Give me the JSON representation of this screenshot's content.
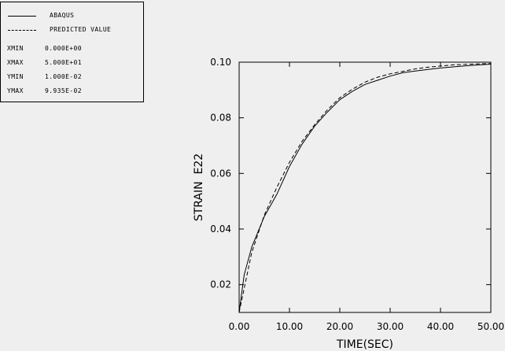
{
  "legend": {
    "entries": [
      {
        "label": "ABAQUS",
        "style": "solid"
      },
      {
        "label": "PREDICTED VALUE",
        "style": "dashed"
      }
    ],
    "stats": [
      {
        "key": "XMIN",
        "value": "0.000E+00"
      },
      {
        "key": "XMAX",
        "value": "5.000E+01"
      },
      {
        "key": "YMIN",
        "value": "1.000E-02"
      },
      {
        "key": "YMAX",
        "value": "9.935E-02"
      }
    ]
  },
  "chart_data": {
    "type": "line",
    "title": "",
    "xlabel": "TIME(SEC)",
    "ylabel": "STRAIN  E22",
    "xlim": [
      0,
      50
    ],
    "ylim": [
      0.01,
      0.1
    ],
    "x_ticks": [
      "0.00",
      "10.00",
      "20.00",
      "30.00",
      "40.00",
      "50.00"
    ],
    "y_ticks": [
      "0.02",
      "0.04",
      "0.06",
      "0.08",
      "0.10"
    ],
    "x_tick_values": [
      0,
      10,
      20,
      30,
      40,
      50
    ],
    "y_tick_values": [
      0.02,
      0.04,
      0.06,
      0.08,
      0.1
    ],
    "grid": false,
    "legend_position": "top-left",
    "series": [
      {
        "name": "ABAQUS",
        "style": "solid",
        "x": [
          0,
          1,
          2.5,
          5,
          7.5,
          10,
          12.5,
          15,
          17.5,
          20,
          22.5,
          25,
          27.5,
          30,
          32.5,
          35,
          37.5,
          40,
          42.5,
          45,
          47.5,
          50
        ],
        "y": [
          0.01,
          0.0235,
          0.0335,
          0.0445,
          0.0525,
          0.0625,
          0.0705,
          0.077,
          0.082,
          0.0865,
          0.0895,
          0.092,
          0.0935,
          0.095,
          0.0962,
          0.0968,
          0.0974,
          0.0979,
          0.0983,
          0.0987,
          0.099,
          0.0993
        ]
      },
      {
        "name": "PREDICTED VALUE",
        "style": "dashed",
        "x": [
          0,
          2.5,
          5,
          7.5,
          10,
          12.5,
          15,
          17.5,
          20,
          22.5,
          25,
          27.5,
          30,
          32.5,
          35,
          37.5,
          40,
          42.5,
          45,
          47.5,
          50
        ],
        "y": [
          0.01,
          0.0315,
          0.045,
          0.055,
          0.064,
          0.0715,
          0.0775,
          0.0828,
          0.0872,
          0.0903,
          0.0928,
          0.0946,
          0.0958,
          0.0967,
          0.0976,
          0.0982,
          0.0986,
          0.099,
          0.0992,
          0.0994,
          0.0995
        ]
      }
    ]
  }
}
